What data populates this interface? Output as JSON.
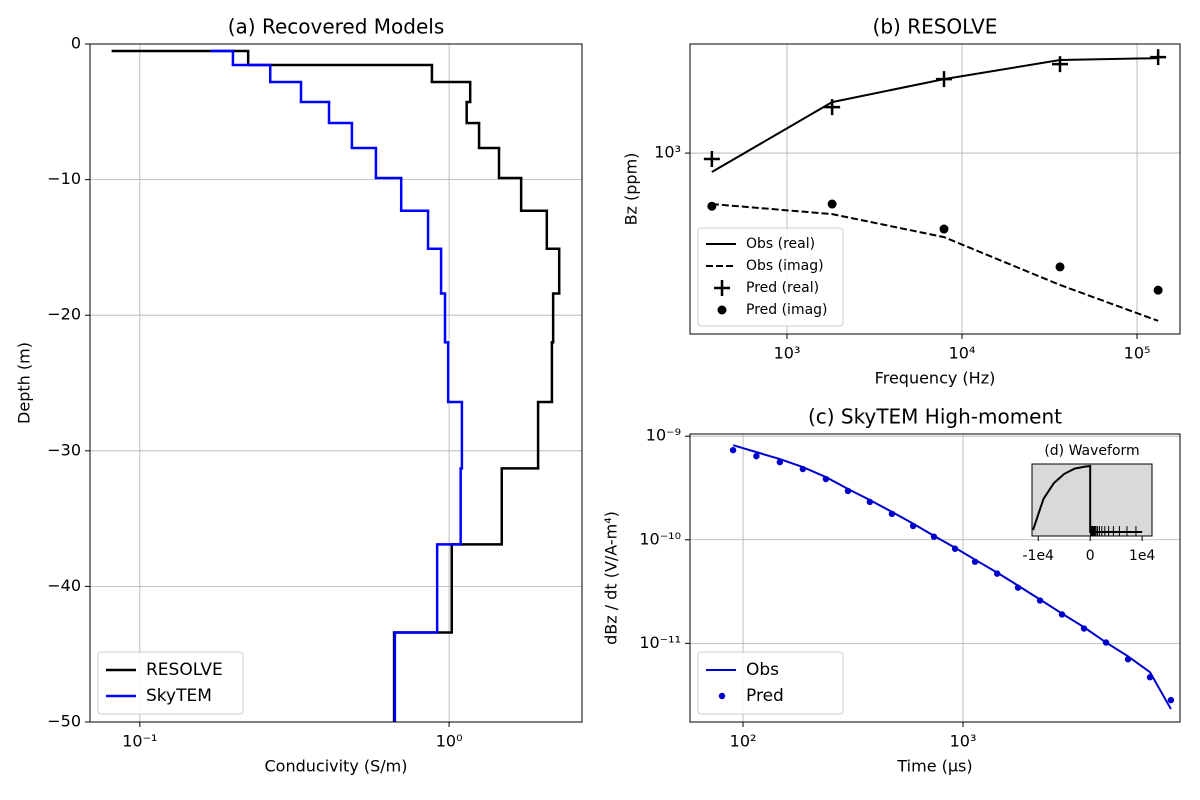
{
  "chart_data": [
    {
      "type": "step",
      "title": "(a) Recovered Models",
      "x_label": "Conducivity (S/m)",
      "y_label": "Depth (m)",
      "xlog": true,
      "ylog": false,
      "grid": true,
      "legend": "lower left",
      "xlim": [
        0.069,
        2.69
      ],
      "ylim": [
        -50,
        0
      ],
      "xticks": [
        {
          "value": 0.1,
          "label": "10⁻¹"
        },
        {
          "value": 1,
          "label": "10⁰"
        }
      ],
      "yticks": [
        0,
        {
          "value": -10,
          "label": "−10"
        },
        {
          "value": -20,
          "label": "−20"
        },
        {
          "value": -30,
          "label": "−30"
        },
        {
          "value": -40,
          "label": "−40"
        },
        {
          "value": -50,
          "label": "−50"
        }
      ],
      "depths": [
        -0.52,
        -0.52,
        -1.55,
        -2.8,
        -4.28,
        -5.83,
        -7.67,
        -9.88,
        -12.3,
        -15.1,
        -18.4,
        -22.0,
        -26.4,
        -31.3,
        -36.9,
        -43.4
      ],
      "series": [
        {
          "name": "RESOLVE",
          "color": "#000000",
          "values": [
            0.0818,
            0.224,
            0.88,
            1.17,
            1.14,
            1.25,
            1.45,
            1.71,
            2.07,
            2.27,
            2.17,
            2.15,
            1.94,
            1.48,
            1.02,
            0.664
          ]
        },
        {
          "name": "SkyTEM",
          "color": "#0000ff",
          "values": [
            0.171,
            0.2,
            0.264,
            0.332,
            0.409,
            0.485,
            0.58,
            0.7,
            0.855,
            0.942,
            0.97,
            0.993,
            1.1,
            1.09,
            0.915,
            0.668
          ]
        }
      ]
    },
    {
      "type": "line",
      "title": "(b) RESOLVE",
      "x_label": "Frequency (Hz)",
      "y_label": "Bz (ppm)",
      "xlog": true,
      "ylog": true,
      "grid": true,
      "legend": "lower left",
      "xlim": [
        279,
        176000
      ],
      "ylim": [
        205,
        2600
      ],
      "xticks": [
        {
          "value": 1000,
          "label": "10³"
        },
        {
          "value": 10000,
          "label": "10⁴"
        },
        {
          "value": 100000,
          "label": "10⁵"
        }
      ],
      "yticks": [
        {
          "value": 1000,
          "label": "10³"
        }
      ],
      "x": [
        372,
        1810,
        7890,
        36300,
        132000
      ],
      "series": [
        {
          "name": "Obs (real)",
          "color": "#000000",
          "style": "solid",
          "values": [
            847,
            1563,
            1911,
            2259,
            2297
          ]
        },
        {
          "name": "Obs (imag)",
          "color": "#000000",
          "style": "dashed",
          "values": [
            640,
            586,
            479,
            315,
            230
          ]
        },
        {
          "name": "Pred (real)",
          "color": "#000000",
          "style": "marker",
          "marker": "+",
          "values": [
            949,
            1496,
            1911,
            2180,
            2317
          ]
        },
        {
          "name": "Pred (imag)",
          "color": "#000000",
          "style": "marker",
          "marker": "o",
          "values": [
            628,
            640,
            514,
            369,
            301
          ]
        }
      ]
    },
    {
      "type": "line",
      "title": "(c) SkyTEM High-moment",
      "x_label": "Time (μs)",
      "y_label": "dBz / dt (V/A-m⁴)",
      "xlog": true,
      "ylog": true,
      "grid": true,
      "legend": "lower left",
      "xlim": [
        57.4,
        9690
      ],
      "ylim": [
        1.74e-12,
        1.05e-09
      ],
      "xticks": [
        {
          "value": 100,
          "label": "10²"
        },
        {
          "value": 1000,
          "label": "10³"
        }
      ],
      "yticks": [
        {
          "value": 1e-09,
          "label": "10⁻⁹"
        },
        {
          "value": 1e-10,
          "label": "10⁻¹⁰"
        },
        {
          "value": 1e-11,
          "label": "10⁻¹¹"
        }
      ],
      "x": [
        90.1,
        115,
        147,
        187,
        238,
        300,
        377,
        475,
        593,
        738,
        920,
        1134,
        1430,
        1778,
        2239,
        2818,
        3548,
        4467,
        5623,
        7079,
        8810
      ],
      "series": [
        {
          "name": "Obs",
          "color": "#0000cc",
          "style": "solid",
          "values": [
            8.19e-10,
            7.02e-10,
            6.01e-10,
            5.03e-10,
            4.03e-10,
            3.09e-10,
            2.42e-10,
            1.86e-10,
            1.43e-10,
            1.09e-10,
            8.38e-11,
            6.42e-11,
            4.82e-11,
            3.61e-11,
            2.65e-11,
            1.94e-11,
            1.43e-11,
            1.02e-11,
            7.5e-12,
            5.26e-12,
            2.32e-12
          ]
        },
        {
          "name": "Pred",
          "color": "#0000cc",
          "style": "marker",
          "marker": "o",
          "values": [
            7.33e-10,
            6.42e-10,
            5.62e-10,
            4.82e-10,
            3.86e-10,
            2.96e-10,
            2.32e-10,
            1.78e-10,
            1.36e-10,
            1.07e-10,
            8.19e-11,
            6.14e-11,
            4.71e-11,
            3.45e-11,
            2.59e-11,
            1.9e-11,
            1.39e-11,
            1.02e-11,
            7.02e-12,
            4.71e-12,
            2.83e-12
          ]
        }
      ]
    },
    {
      "type": "line",
      "title": "(d) Waveform",
      "xlog": false,
      "ylog": false,
      "grid": false,
      "background": "#d9d9d9",
      "xlim": [
        -11200,
        11900
      ],
      "ylim": [
        -0.06,
        1.03
      ],
      "xticks": [
        {
          "value": -10000,
          "label": "-1e4"
        },
        0,
        {
          "value": 10000,
          "label": "1e4"
        }
      ],
      "yticks": [],
      "x": [
        -11000,
        -9000,
        -7000,
        -5000,
        -3000,
        -1000,
        0,
        0,
        10000
      ],
      "series": [
        {
          "color": "#000000",
          "style": "solid",
          "values": [
            0.03,
            0.5,
            0.74,
            0.88,
            0.96,
            0.99,
            1,
            0,
            0
          ]
        }
      ]
    }
  ]
}
